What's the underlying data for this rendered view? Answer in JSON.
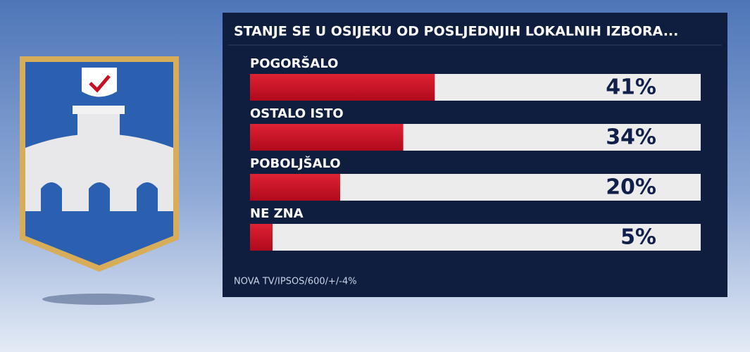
{
  "chart_data": {
    "type": "bar",
    "orientation": "horizontal",
    "title": "STANJE SE U OSIJEKU OD POSLJEDNJIH LOKALNIH IZBORA...",
    "categories": [
      "POGORŠALO",
      "OSTALO ISTO",
      "POBOLJŠALO",
      "NE ZNA"
    ],
    "values": [
      41,
      34,
      20,
      5
    ],
    "value_labels": [
      "41%",
      "34%",
      "20%",
      "5%"
    ],
    "color": "#c50f24",
    "xlim": [
      0,
      100
    ],
    "source": "NOVA TV/IPSOS/600/+/-4%"
  }
}
